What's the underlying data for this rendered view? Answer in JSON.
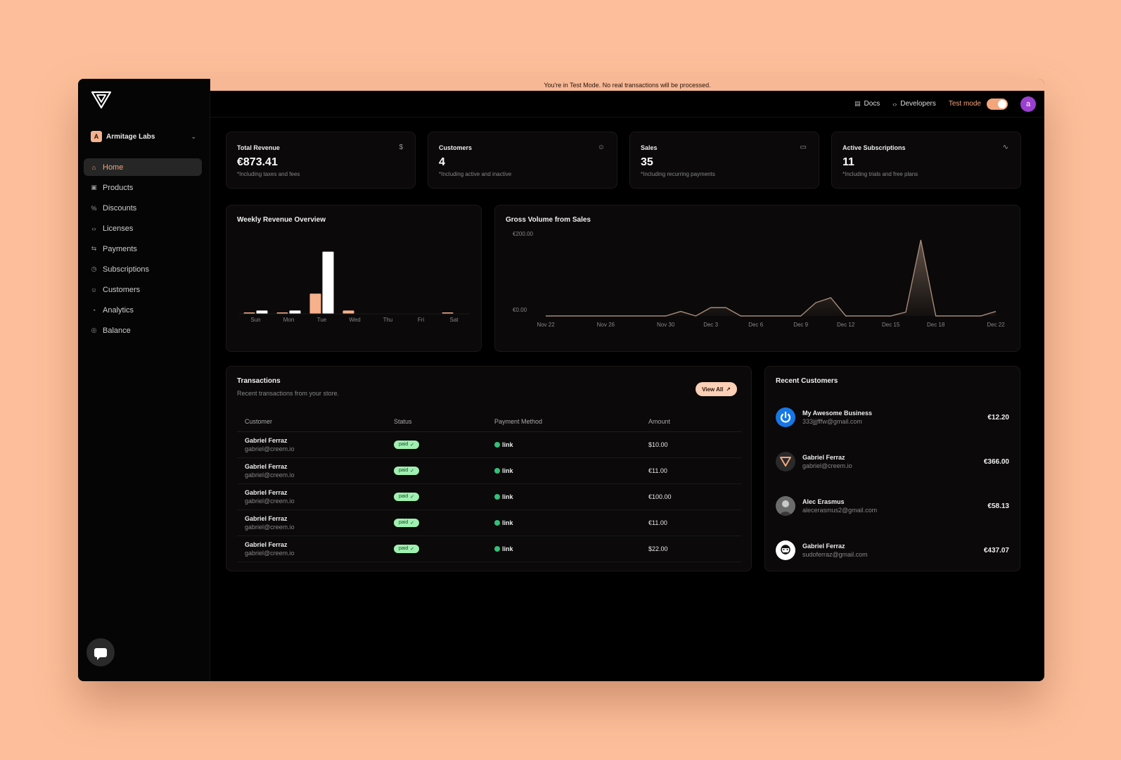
{
  "banner": "You're in Test Mode. No real transactions will be processed.",
  "org": {
    "initial": "A",
    "name": "Armitage Labs"
  },
  "nav": [
    {
      "label": "Home",
      "icon": "home-icon",
      "active": true
    },
    {
      "label": "Products",
      "icon": "box-icon"
    },
    {
      "label": "Discounts",
      "icon": "discount-icon"
    },
    {
      "label": "Licenses",
      "icon": "code-icon"
    },
    {
      "label": "Payments",
      "icon": "payments-icon"
    },
    {
      "label": "Subscriptions",
      "icon": "clock-icon"
    },
    {
      "label": "Customers",
      "icon": "users-icon"
    },
    {
      "label": "Analytics",
      "icon": "pie-icon"
    },
    {
      "label": "Balance",
      "icon": "coin-icon"
    }
  ],
  "topbar": {
    "docs": "Docs",
    "developers": "Developers",
    "test_mode": "Test mode",
    "avatar": "a"
  },
  "stats": [
    {
      "title": "Total Revenue",
      "value": "€873.41",
      "sub": "*Including taxes and fees",
      "icon": "$"
    },
    {
      "title": "Customers",
      "value": "4",
      "sub": "*Including active and inactive",
      "icon": "users"
    },
    {
      "title": "Sales",
      "value": "35",
      "sub": "*Including recurring payments",
      "icon": "card"
    },
    {
      "title": "Active Subscriptions",
      "value": "11",
      "sub": "*Including trials and free plans",
      "icon": "pulse"
    }
  ],
  "weekly": {
    "title": "Weekly Revenue Overview"
  },
  "gross": {
    "title": "Gross Volume from Sales"
  },
  "chart_data": [
    {
      "type": "bar",
      "title": "Weekly Revenue Overview",
      "categories": [
        "Sun",
        "Mon",
        "Tue",
        "Wed",
        "Thu",
        "Fri",
        "Sat"
      ],
      "series": [
        {
          "values": [
            1,
            2,
            30,
            5,
            0,
            0,
            1
          ]
        },
        {
          "values": [
            5,
            5,
            92,
            0,
            0,
            0,
            0
          ]
        }
      ],
      "colors": [
        "#f6b08a",
        "#ffffff"
      ],
      "ylim": [
        0,
        100
      ]
    },
    {
      "type": "area",
      "title": "Gross Volume from Sales",
      "x": [
        "Nov 22",
        "Nov 23",
        "Nov 24",
        "Nov 25",
        "Nov 26",
        "Nov 27",
        "Nov 28",
        "Nov 29",
        "Nov 30",
        "Dec 1",
        "Dec 2",
        "Dec 3",
        "Dec 4",
        "Dec 5",
        "Dec 6",
        "Dec 7",
        "Dec 8",
        "Dec 9",
        "Dec 10",
        "Dec 11",
        "Dec 12",
        "Dec 13",
        "Dec 14",
        "Dec 15",
        "Dec 16",
        "Dec 17",
        "Dec 18",
        "Dec 19",
        "Dec 20",
        "Dec 21",
        "Dec 22"
      ],
      "values": [
        0,
        0,
        0,
        0,
        0,
        0,
        0,
        0,
        0,
        12,
        0,
        22,
        22,
        0,
        0,
        0,
        0,
        0,
        35,
        48,
        0,
        0,
        0,
        0,
        10,
        200,
        0,
        0,
        0,
        0,
        12
      ],
      "xticks": [
        "Nov 22",
        "Nov 26",
        "Nov 30",
        "Dec 3",
        "Dec 6",
        "Dec 9",
        "Dec 12",
        "Dec 15",
        "Dec 18",
        "Dec 22"
      ],
      "yticks": [
        "€200.00",
        "€0.00"
      ],
      "ylim": [
        0,
        200
      ],
      "color": "#a58a78"
    }
  ],
  "transactions": {
    "title": "Transactions",
    "subtitle": "Recent transactions from your store.",
    "view_all": "View All",
    "columns": [
      "Customer",
      "Status",
      "Payment Method",
      "Amount"
    ],
    "rows": [
      {
        "name": "Gabriel Ferraz",
        "email": "gabriel@creem.io",
        "status": "paid",
        "method": "link",
        "amount": "$10.00"
      },
      {
        "name": "Gabriel Ferraz",
        "email": "gabriel@creem.io",
        "status": "paid",
        "method": "link",
        "amount": "€11.00"
      },
      {
        "name": "Gabriel Ferraz",
        "email": "gabriel@creem.io",
        "status": "paid",
        "method": "link",
        "amount": "€100.00"
      },
      {
        "name": "Gabriel Ferraz",
        "email": "gabriel@creem.io",
        "status": "paid",
        "method": "link",
        "amount": "€11.00"
      },
      {
        "name": "Gabriel Ferraz",
        "email": "gabriel@creem.io",
        "status": "paid",
        "method": "link",
        "amount": "$22.00"
      }
    ]
  },
  "recent": {
    "title": "Recent Customers",
    "items": [
      {
        "name": "My Awesome Business",
        "email": "333jjjfffw@gmail.com",
        "amount": "€12.20",
        "avatar": "power-icon"
      },
      {
        "name": "Gabriel Ferraz",
        "email": "gabriel@creem.io",
        "amount": "€366.00",
        "avatar": "logo-icon"
      },
      {
        "name": "Alec Erasmus",
        "email": "alecerasmus2@gmail.com",
        "amount": "€58.13",
        "avatar": "photo-icon"
      },
      {
        "name": "Gabriel Ferraz",
        "email": "sudoferraz@gmail.com",
        "amount": "€437.07",
        "avatar": "face-icon"
      }
    ]
  }
}
